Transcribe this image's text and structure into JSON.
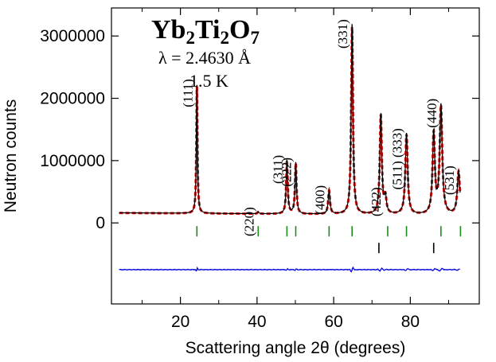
{
  "chart_data": {
    "type": "line",
    "title": "Yb2Ti2O7",
    "title_parts": {
      "a": "Yb",
      "a_sub": "2",
      "b": "Ti",
      "b_sub": "2",
      "c": "O",
      "c_sub": "7"
    },
    "subtitle_lines": [
      "λ = 2.4630 Å",
      "1.5 K"
    ],
    "xlabel": "Scattering angle 2θ (degrees)",
    "ylabel": "Neutron counts",
    "xlim": [
      2,
      98
    ],
    "ylim": [
      -1300000,
      3450000
    ],
    "xticks": [
      20,
      40,
      60,
      80
    ],
    "yticks": [
      0,
      1000000,
      2000000,
      3000000
    ],
    "xtick_labels": [
      "20",
      "40",
      "60",
      "80"
    ],
    "ytick_labels": [
      "0",
      "1000000",
      "2000000",
      "3000000"
    ],
    "background_level": 150000,
    "background_start": 4,
    "background_end": 93,
    "peaks": [
      {
        "label": "(111)",
        "x": 24.3,
        "height": 2080000,
        "width": 0.22
      },
      {
        "label": "(220)",
        "x": 40.3,
        "height": 30000,
        "width": 0.3
      },
      {
        "label": "(311)",
        "x": 47.8,
        "height": 860000,
        "width": 0.3
      },
      {
        "label": "(222)",
        "x": 50.1,
        "height": 820000,
        "width": 0.3
      },
      {
        "label": "(400)",
        "x": 58.8,
        "height": 380000,
        "width": 0.35
      },
      {
        "label": "(331)",
        "x": 64.8,
        "height": 3050000,
        "width": 0.35
      },
      {
        "label": "",
        "x": 72.3,
        "height": 1600000,
        "width": 0.4
      },
      {
        "label": "(422)",
        "x": 73.5,
        "height": 250000,
        "width": 0.4
      },
      {
        "label": "(511) (333)",
        "x": 79.0,
        "height": 1300000,
        "width": 0.45
      },
      {
        "label": "",
        "x": 86.1,
        "height": 1300000,
        "width": 0.45
      },
      {
        "label": "(440)",
        "x": 88.0,
        "height": 1740000,
        "width": 0.5
      },
      {
        "label": "(531)",
        "x": 92.6,
        "height": 700000,
        "width": 0.5
      }
    ],
    "green_ticks": [
      24.3,
      40.3,
      47.8,
      50.1,
      58.8,
      64.8,
      74.1,
      79.0,
      88.0,
      93.1
    ],
    "black_ticks": [
      71.8,
      86.1
    ],
    "difference_offset": -750000,
    "series": [
      {
        "role": "observed",
        "color": "#000000"
      },
      {
        "role": "calculated",
        "color": "#e01010",
        "style": "dashed"
      },
      {
        "role": "difference",
        "color": "#1010e0"
      }
    ]
  }
}
